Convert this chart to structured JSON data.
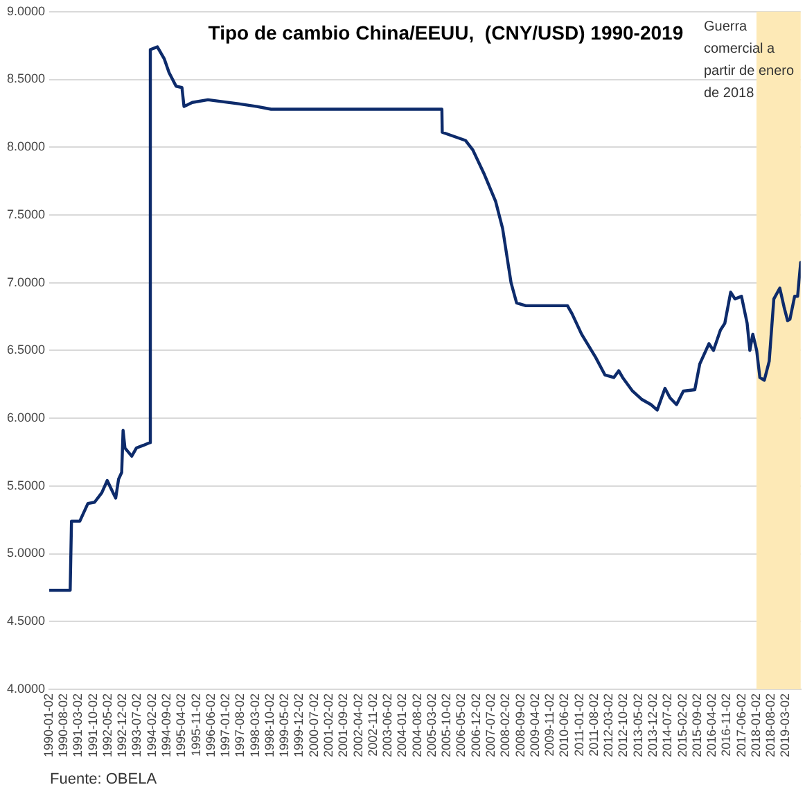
{
  "chart_data": {
    "type": "line",
    "title": "Tipo de cambio China/EEUU,  (CNY/USD) 1990-2019",
    "annotations": [
      "Fuente: OBELA"
    ],
    "x": [
      "1990-01-02",
      "1990-11-01",
      "1990-11-20",
      "1991-03-20",
      "1991-07-15",
      "1991-10-20",
      "1992-02-01",
      "1992-04-20",
      "1992-06-15",
      "1992-08-20",
      "1992-10-01",
      "1992-11-15",
      "1992-12-05",
      "1993-01-01",
      "1993-04-10",
      "1993-06-15",
      "1993-09-25",
      "1993-12-28",
      "1994-01-03",
      "1994-04-15",
      "1994-07-25",
      "1994-10-01",
      "1995-01-10",
      "1995-04-05",
      "1995-05-05",
      "1995-09-01",
      "1996-04-15",
      "1997-07-01",
      "1998-03-25",
      "1998-10-15",
      "2005-07-20",
      "2005-07-25",
      "2006-06-25",
      "2006-10-10",
      "2007-03-25",
      "2007-09-05",
      "2007-12-15",
      "2008-04-15",
      "2008-07-05",
      "2008-11-15",
      "2010-07-10",
      "2010-09-15",
      "2011-01-30",
      "2011-08-20",
      "2012-01-02",
      "2012-05-10",
      "2012-07-20",
      "2012-09-15",
      "2013-02-05",
      "2013-06-15",
      "2013-10-30",
      "2014-01-28",
      "2014-05-20",
      "2014-08-01",
      "2014-11-03",
      "2015-02-10",
      "2015-07-25",
      "2015-10-05",
      "2016-02-15",
      "2016-04-20",
      "2016-07-30",
      "2016-10-01",
      "2016-12-25",
      "2017-02-25",
      "2017-05-30",
      "2017-08-20",
      "2017-09-28",
      "2017-11-10",
      "2018-01-05",
      "2018-02-20",
      "2018-04-25",
      "2018-07-05",
      "2018-09-10",
      "2018-12-05",
      "2019-02-05",
      "2019-03-28",
      "2019-05-01",
      "2019-07-08",
      "2019-08-20",
      "2019-10-03"
    ],
    "series": [
      {
        "color": "#0d2b6b",
        "values": [
          4.73,
          4.73,
          5.24,
          5.24,
          5.37,
          5.38,
          5.45,
          5.54,
          5.48,
          5.41,
          5.55,
          5.6,
          5.91,
          5.78,
          5.72,
          5.78,
          5.8,
          5.82,
          8.72,
          8.74,
          8.65,
          8.55,
          8.45,
          8.44,
          8.3,
          8.33,
          8.35,
          8.32,
          8.3,
          8.28,
          8.28,
          8.11,
          8.05,
          7.98,
          7.8,
          7.6,
          7.4,
          7.0,
          6.85,
          6.83,
          6.83,
          6.77,
          6.62,
          6.45,
          6.32,
          6.3,
          6.35,
          6.3,
          6.2,
          6.14,
          6.1,
          6.06,
          6.22,
          6.15,
          6.1,
          6.2,
          6.21,
          6.4,
          6.55,
          6.5,
          6.65,
          6.7,
          6.93,
          6.88,
          6.9,
          6.7,
          6.5,
          6.62,
          6.5,
          6.3,
          6.28,
          6.42,
          6.88,
          6.96,
          6.82,
          6.72,
          6.73,
          6.9,
          6.9,
          7.15
        ]
      }
    ],
    "xlim": [
      "1990-01-02",
      "2019-10-03"
    ],
    "xticks": [
      "1990-01-02",
      "1990-08-02",
      "1991-03-02",
      "1991-10-02",
      "1992-05-02",
      "1992-12-02",
      "1993-07-02",
      "1994-02-02",
      "1994-09-02",
      "1995-04-02",
      "1995-11-02",
      "1996-06-02",
      "1997-01-02",
      "1997-08-02",
      "1998-03-02",
      "1998-10-02",
      "1999-05-02",
      "1999-12-02",
      "2000-07-02",
      "2001-02-02",
      "2001-09-02",
      "2002-04-02",
      "2002-11-02",
      "2003-06-02",
      "2004-01-02",
      "2004-08-02",
      "2005-03-02",
      "2005-10-02",
      "2006-05-02",
      "2006-12-02",
      "2007-07-02",
      "2008-02-02",
      "2008-09-02",
      "2009-04-02",
      "2009-11-02",
      "2010-06-02",
      "2011-01-02",
      "2011-08-02",
      "2012-03-02",
      "2012-10-02",
      "2013-05-02",
      "2013-12-02",
      "2014-07-02",
      "2015-02-02",
      "2015-09-02",
      "2016-04-02",
      "2016-11-02",
      "2017-06-02",
      "2018-01-02",
      "2018-08-02",
      "2019-03-02"
    ],
    "ylim": [
      4,
      9
    ],
    "yticks": [
      {
        "value": 4,
        "label": "4.0000"
      },
      {
        "value": 4.5,
        "label": "4.5000"
      },
      {
        "value": 5,
        "label": "5.0000"
      },
      {
        "value": 5.5,
        "label": "5.5000"
      },
      {
        "value": 6,
        "label": "6.0000"
      },
      {
        "value": 6.5,
        "label": "6.5000"
      },
      {
        "value": 7,
        "label": "7.0000"
      },
      {
        "value": 7.5,
        "label": "7.5000"
      },
      {
        "value": 8,
        "label": "8.0000"
      },
      {
        "value": 8.5,
        "label": "8.5000"
      },
      {
        "value": 9,
        "label": "9.0000"
      }
    ],
    "bands": [
      {
        "axis": "x",
        "from": "2018-01-02",
        "to": "2019-10-03",
        "label": "Guerra comercial a partir de enero de 2018",
        "color": "#fde9b6"
      }
    ],
    "grid": "y",
    "legend": false,
    "marker": "none",
    "line_style": "solid"
  }
}
